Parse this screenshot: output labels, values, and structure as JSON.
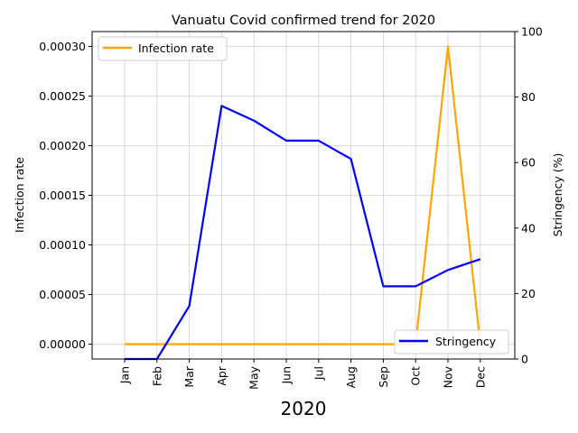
{
  "chart_data": {
    "type": "line",
    "title": "Vanuatu Covid confirmed trend for 2020",
    "xlabel": "2020",
    "categories": [
      "Jan",
      "Feb",
      "Mar",
      "Apr",
      "May",
      "Jun",
      "Jul",
      "Aug",
      "Sep",
      "Oct",
      "Nov",
      "Dec"
    ],
    "left_axis": {
      "label": "Infection rate",
      "ylim": [
        -1.5e-05,
        0.000315
      ],
      "ticks": [
        0.0,
        5e-05,
        0.0001,
        0.00015,
        0.0002,
        0.00025,
        0.0003
      ],
      "tick_labels": [
        "0.00000",
        "0.00005",
        "0.00010",
        "0.00015",
        "0.00020",
        "0.00025",
        "0.00030"
      ]
    },
    "right_axis": {
      "label": "Stringency (%)",
      "ylim": [
        0,
        100
      ],
      "ticks": [
        0,
        20,
        40,
        60,
        80,
        100
      ],
      "tick_labels": [
        "0",
        "20",
        "40",
        "60",
        "80",
        "100"
      ]
    },
    "series": [
      {
        "name": "Infection rate",
        "axis": "left",
        "color": "#ffa500",
        "values": [
          0.0,
          0.0,
          0.0,
          0.0,
          0.0,
          0.0,
          0.0,
          0.0,
          0.0,
          0.0,
          0.0003,
          0.0
        ]
      },
      {
        "name": "Stringency",
        "axis": "right",
        "color": "#0000ff",
        "values": [
          0,
          0,
          16.2,
          77.3,
          72.8,
          66.7,
          66.7,
          61.1,
          22.2,
          22.2,
          27.2,
          30.5
        ]
      }
    ],
    "legends": [
      {
        "series": 0,
        "placement": "upper left"
      },
      {
        "series": 1,
        "placement": "lower right"
      }
    ],
    "grid": true
  }
}
